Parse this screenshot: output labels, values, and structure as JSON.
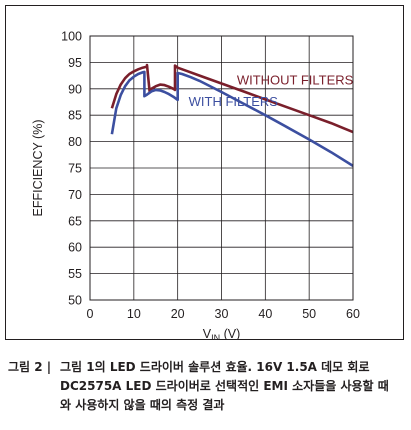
{
  "chart_data": {
    "type": "line",
    "title": "",
    "xlabel": "V",
    "xlabel_sub": "IN",
    "xlabel_unit": " (V)",
    "ylabel": "EFFICIENCY (%)",
    "xlim": [
      0,
      60
    ],
    "ylim": [
      50,
      100
    ],
    "x_ticks": [
      0,
      10,
      20,
      30,
      40,
      50,
      60
    ],
    "y_ticks": [
      50,
      55,
      60,
      65,
      70,
      75,
      80,
      85,
      90,
      95,
      100
    ],
    "grid": true,
    "series": [
      {
        "name": "WITHOUT FILTERS",
        "color": "#7a1f2b",
        "points": [
          [
            5,
            86.3
          ],
          [
            6,
            89.0
          ],
          [
            7,
            90.8
          ],
          [
            8,
            92.0
          ],
          [
            9,
            92.8
          ],
          [
            10,
            93.3
          ],
          [
            11,
            93.7
          ],
          [
            12,
            94.0
          ],
          [
            13,
            94.2
          ],
          [
            13,
            94.5
          ],
          [
            13.6,
            89.5
          ],
          [
            14,
            90.0
          ],
          [
            15,
            90.5
          ],
          [
            16,
            90.8
          ],
          [
            17,
            90.7
          ],
          [
            18,
            90.4
          ],
          [
            19,
            90.0
          ],
          [
            19.4,
            89.8
          ],
          [
            19.4,
            94.4
          ],
          [
            20,
            94.0
          ],
          [
            22,
            93.4
          ],
          [
            25,
            92.5
          ],
          [
            30,
            91.0
          ],
          [
            35,
            89.5
          ],
          [
            40,
            88.0
          ],
          [
            45,
            86.5
          ],
          [
            50,
            85.0
          ],
          [
            55,
            83.5
          ],
          [
            60,
            81.8
          ]
        ]
      },
      {
        "name": "WITH FILTERS",
        "color": "#3c4fa0",
        "points": [
          [
            5,
            81.4
          ],
          [
            6,
            86.3
          ],
          [
            7,
            88.8
          ],
          [
            8,
            90.5
          ],
          [
            9,
            91.6
          ],
          [
            10,
            92.3
          ],
          [
            11,
            92.8
          ],
          [
            12,
            93.1
          ],
          [
            12.4,
            93.2
          ],
          [
            12.4,
            88.6
          ],
          [
            13,
            88.9
          ],
          [
            14,
            89.5
          ],
          [
            15,
            89.8
          ],
          [
            16,
            89.7
          ],
          [
            17,
            89.4
          ],
          [
            18,
            89.0
          ],
          [
            19,
            88.5
          ],
          [
            20,
            87.9
          ],
          [
            20,
            93.0
          ],
          [
            21,
            92.8
          ],
          [
            23,
            92.2
          ],
          [
            25,
            91.5
          ],
          [
            30,
            89.4
          ],
          [
            35,
            87.2
          ],
          [
            40,
            85.0
          ],
          [
            45,
            82.7
          ],
          [
            50,
            80.4
          ],
          [
            55,
            78.0
          ],
          [
            60,
            75.4
          ]
        ]
      }
    ]
  },
  "caption": {
    "label": "그림 2 |",
    "body": "그림 1의 LED 드라이버 솔루션 효율. 16V 1.5A 데모 회로 DC2575A LED 드라이버로 선택적인 EMI 소자들을 사용할 때와 사용하지 않을 때의 측정 결과"
  }
}
